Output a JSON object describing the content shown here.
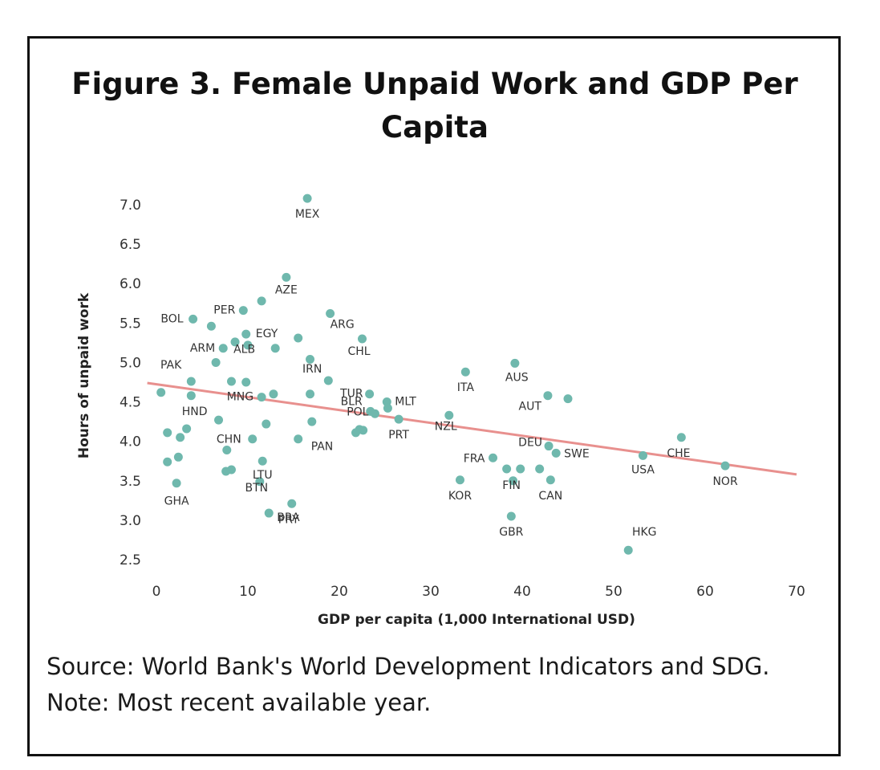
{
  "figure": {
    "title": "Figure 3. Female Unpaid Work and GDP Per Capita",
    "source_line": "Source: World Bank's World Development Indicators and SDG.",
    "note_line": "Note: Most recent available year."
  },
  "chart_data": {
    "type": "scatter",
    "xlabel": "GDP per capita (1,000 International USD)",
    "ylabel": "Hours of unpaid work",
    "xlim": [
      0,
      70
    ],
    "ylim": [
      2.5,
      7.0
    ],
    "xticks": [
      "0",
      "10",
      "20",
      "30",
      "40",
      "50",
      "60",
      "70"
    ],
    "yticks": [
      "2.5",
      "3.0",
      "3.5",
      "4.0",
      "4.5",
      "5.0",
      "5.5",
      "6.0",
      "6.5",
      "7.0"
    ],
    "grid": false,
    "point_color": "#6fb8ad",
    "trend_color": "#e8908e",
    "trendline": {
      "x": [
        -1,
        70
      ],
      "y": [
        4.74,
        3.58
      ]
    },
    "points": [
      {
        "label": "MEX",
        "x": 16.5,
        "y": 7.08
      },
      {
        "label": "AZE",
        "x": 14.2,
        "y": 6.08
      },
      {
        "label": "",
        "x": 11.5,
        "y": 5.78
      },
      {
        "label": "PER",
        "x": 9.5,
        "y": 5.66
      },
      {
        "label": "",
        "x": 6.0,
        "y": 5.46
      },
      {
        "label": "BOL",
        "x": 4.0,
        "y": 5.55
      },
      {
        "label": "ARG",
        "x": 19.0,
        "y": 5.62
      },
      {
        "label": "EGY",
        "x": 9.8,
        "y": 5.36
      },
      {
        "label": "",
        "x": 15.5,
        "y": 5.31
      },
      {
        "label": "CHL",
        "x": 22.5,
        "y": 5.3
      },
      {
        "label": "",
        "x": 8.6,
        "y": 5.26
      },
      {
        "label": "",
        "x": 10.0,
        "y": 5.22
      },
      {
        "label": "",
        "x": 13.0,
        "y": 5.18
      },
      {
        "label": "ARM",
        "x": 7.3,
        "y": 5.18
      },
      {
        "label": "ALB",
        "x": 6.5,
        "y": 5.0
      },
      {
        "label": "",
        "x": 16.8,
        "y": 5.04
      },
      {
        "label": "AUS",
        "x": 39.2,
        "y": 4.99
      },
      {
        "label": "ITA",
        "x": 33.8,
        "y": 4.88
      },
      {
        "label": "IRN",
        "x": 18.8,
        "y": 4.77
      },
      {
        "label": "PAK",
        "x": 3.8,
        "y": 4.76
      },
      {
        "label": "",
        "x": 8.2,
        "y": 4.76
      },
      {
        "label": "",
        "x": 9.8,
        "y": 4.75
      },
      {
        "label": "",
        "x": 0.5,
        "y": 4.62
      },
      {
        "label": "",
        "x": 3.8,
        "y": 4.58
      },
      {
        "label": "MNG",
        "x": 11.5,
        "y": 4.56
      },
      {
        "label": "",
        "x": 12.8,
        "y": 4.6
      },
      {
        "label": "",
        "x": 16.8,
        "y": 4.6
      },
      {
        "label": "TUR",
        "x": 23.3,
        "y": 4.6
      },
      {
        "label": "AUT",
        "x": 42.8,
        "y": 4.58
      },
      {
        "label": "",
        "x": 45.0,
        "y": 4.54
      },
      {
        "label": "MLT",
        "x": 25.2,
        "y": 4.5
      },
      {
        "label": "",
        "x": 25.3,
        "y": 4.42
      },
      {
        "label": "BLR",
        "x": 23.4,
        "y": 4.38
      },
      {
        "label": "POL",
        "x": 23.9,
        "y": 4.35
      },
      {
        "label": "NZL",
        "x": 32.0,
        "y": 4.33
      },
      {
        "label": "PRT",
        "x": 26.5,
        "y": 4.28
      },
      {
        "label": "HND",
        "x": 6.8,
        "y": 4.27
      },
      {
        "label": "",
        "x": 12.0,
        "y": 4.22
      },
      {
        "label": "",
        "x": 17.0,
        "y": 4.25
      },
      {
        "label": "",
        "x": 3.3,
        "y": 4.16
      },
      {
        "label": "",
        "x": 22.2,
        "y": 4.15
      },
      {
        "label": "",
        "x": 22.6,
        "y": 4.14
      },
      {
        "label": "",
        "x": 21.8,
        "y": 4.11
      },
      {
        "label": "",
        "x": 1.2,
        "y": 4.11
      },
      {
        "label": "",
        "x": 2.6,
        "y": 4.05
      },
      {
        "label": "CHN",
        "x": 10.5,
        "y": 4.03
      },
      {
        "label": "PAN",
        "x": 15.5,
        "y": 4.03
      },
      {
        "label": "CHE",
        "x": 57.4,
        "y": 4.05
      },
      {
        "label": "DEU",
        "x": 42.9,
        "y": 3.94
      },
      {
        "label": "SWE",
        "x": 43.7,
        "y": 3.85
      },
      {
        "label": "",
        "x": 7.7,
        "y": 3.89
      },
      {
        "label": "USA",
        "x": 53.2,
        "y": 3.82
      },
      {
        "label": "FRA",
        "x": 36.8,
        "y": 3.79
      },
      {
        "label": "",
        "x": 2.4,
        "y": 3.8
      },
      {
        "label": "LTU",
        "x": 11.6,
        "y": 3.75
      },
      {
        "label": "",
        "x": 1.2,
        "y": 3.74
      },
      {
        "label": "NOR",
        "x": 62.2,
        "y": 3.69
      },
      {
        "label": "",
        "x": 38.3,
        "y": 3.65
      },
      {
        "label": "",
        "x": 39.8,
        "y": 3.65
      },
      {
        "label": "",
        "x": 41.9,
        "y": 3.65
      },
      {
        "label": "",
        "x": 8.2,
        "y": 3.64
      },
      {
        "label": "",
        "x": 7.6,
        "y": 3.62
      },
      {
        "label": "KOR",
        "x": 33.2,
        "y": 3.51
      },
      {
        "label": "CAN",
        "x": 43.1,
        "y": 3.51
      },
      {
        "label": "FIN",
        "x": 39.0,
        "y": 3.5
      },
      {
        "label": "GHA",
        "x": 2.2,
        "y": 3.47
      },
      {
        "label": "BTN",
        "x": 11.3,
        "y": 3.49
      },
      {
        "label": "PRY",
        "x": 14.8,
        "y": 3.21
      },
      {
        "label": "BRA",
        "x": 12.3,
        "y": 3.09
      },
      {
        "label": "GBR",
        "x": 38.8,
        "y": 3.05
      },
      {
        "label": "HKG",
        "x": 51.6,
        "y": 2.62
      }
    ]
  }
}
